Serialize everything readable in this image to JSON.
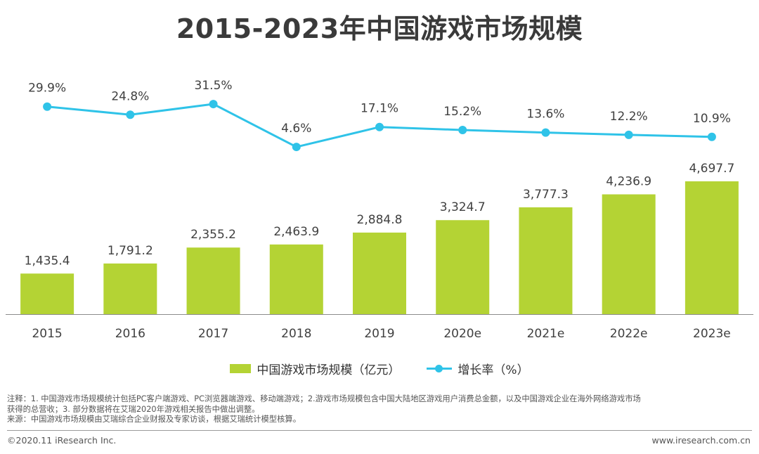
{
  "title": "2015-2023年中国游戏市场规模",
  "chart_data": {
    "type": "bar",
    "categories": [
      "2015",
      "2016",
      "2017",
      "2018",
      "2019",
      "2020e",
      "2021e",
      "2022e",
      "2023e"
    ],
    "series": [
      {
        "name": "中国游戏市场规模（亿元）",
        "kind": "bar",
        "color": "#b4d334",
        "values": [
          1435.4,
          1791.2,
          2355.2,
          2463.9,
          2884.8,
          3324.7,
          3777.3,
          4236.9,
          4697.7
        ],
        "labels": [
          "1,435.4",
          "1,791.2",
          "2,355.2",
          "2,463.9",
          "2,884.8",
          "3,324.7",
          "3,777.3",
          "4,236.9",
          "4,697.7"
        ]
      },
      {
        "name": "增长率（%）",
        "kind": "line",
        "color": "#2fc3e8",
        "values": [
          29.9,
          24.8,
          31.5,
          4.6,
          17.1,
          15.2,
          13.6,
          12.2,
          10.9
        ],
        "labels": [
          "29.9%",
          "24.8%",
          "31.5%",
          "4.6%",
          "17.1%",
          "15.2%",
          "13.6%",
          "12.2%",
          "10.9%"
        ]
      }
    ],
    "ylim_bar": [
      0,
      5000
    ],
    "ylim_line": [
      0,
      35
    ],
    "grid": false
  },
  "legend": {
    "bar_label": "中国游戏市场规模（亿元）",
    "line_label": "增长率（%）"
  },
  "notes": {
    "line1": "注释：1. 中国游戏市场规模统计包括PC客户端游戏、PC浏览器端游戏、移动端游戏；2.游戏市场规模包含中国大陆地区游戏用户消费总金额，以及中国游戏企业在海外网络游戏市场",
    "line2": "获得的总营收；3. 部分数据将在艾瑞2020年游戏相关报告中做出调整。",
    "line3": "来源：中国游戏市场规模由艾瑞综合企业财报及专家访谈，根据艾瑞统计模型核算。"
  },
  "footer": {
    "copyright": "©2020.11 iResearch Inc.",
    "website": "www.iresearch.com.cn"
  }
}
